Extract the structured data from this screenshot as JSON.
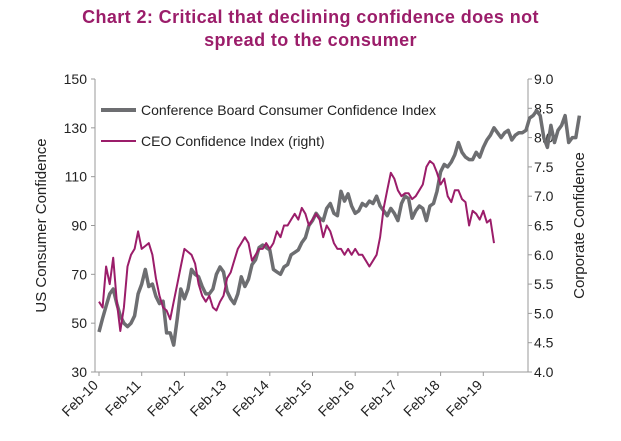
{
  "chart_data": {
    "type": "line",
    "title_lines": [
      "Chart 2: Critical that declining confidence does not",
      "spread to the consumer"
    ],
    "ylabel_left": "US Consumer Confidence",
    "ylabel_right": "Corporate Confidence",
    "ylim_left": [
      30,
      150
    ],
    "yticks_left": [
      "30",
      "50",
      "70",
      "90",
      "110",
      "130",
      "150"
    ],
    "ylim_right": [
      4.0,
      9.0
    ],
    "yticks_right": [
      "4.0",
      "4.5",
      "5.0",
      "5.5",
      "6.0",
      "6.5",
      "7.0",
      "7.5",
      "8.0",
      "8.5",
      "9.0"
    ],
    "x_ticks": [
      "Feb-10",
      "Feb-11",
      "Feb-12",
      "Feb-13",
      "Feb-14",
      "Feb-15",
      "Feb-16",
      "Feb-17",
      "Feb-18",
      "Feb-19"
    ],
    "grid": false,
    "legend_position": "top-left",
    "series": [
      {
        "name": "Conference Board Consumer Confidence Index",
        "axis": "left",
        "color": "#6d6e71",
        "x_start": "2010-02",
        "frequency": "monthly",
        "values": [
          46.4,
          52,
          57,
          62,
          64,
          58,
          53,
          50,
          48.6,
          50,
          53,
          62,
          66,
          72.0,
          65,
          66,
          61,
          58,
          59,
          46,
          46,
          41,
          52,
          64,
          60,
          64,
          72,
          70,
          69,
          65,
          62,
          62,
          64,
          70,
          73,
          71,
          63,
          60,
          58,
          62,
          69,
          65,
          68,
          74,
          76,
          81,
          82,
          81,
          80,
          72,
          71,
          70,
          73,
          74,
          78,
          79,
          80,
          83,
          85,
          90,
          92,
          95,
          93,
          92,
          97,
          99,
          95,
          94,
          104,
          100,
          103,
          98,
          95,
          96,
          99,
          98,
          100,
          99,
          102,
          98,
          96,
          94,
          97,
          95,
          92,
          99,
          102,
          101,
          93,
          96,
          98,
          97,
          92,
          98,
          99,
          104,
          112,
          115,
          114,
          116,
          119,
          124,
          120,
          118,
          117,
          117,
          120,
          118,
          122,
          125,
          127,
          130,
          128,
          126,
          128,
          129,
          125,
          127,
          128,
          128,
          129,
          134,
          135,
          137,
          135,
          126,
          122,
          131,
          124,
          129,
          131,
          135,
          124,
          126,
          126,
          135
        ]
      },
      {
        "name": "CEO Confidence Index (right)",
        "axis": "right",
        "color": "#9b1d6a",
        "x_start": "2010-02",
        "frequency": "monthly",
        "values": [
          5.2,
          5.1,
          5.8,
          5.5,
          5.95,
          5.2,
          4.7,
          5.1,
          5.8,
          6.0,
          6.1,
          6.4,
          6.1,
          6.15,
          6.2,
          6.0,
          5.6,
          5.3,
          5.1,
          5.05,
          4.9,
          5.2,
          5.5,
          5.8,
          6.1,
          6.05,
          6.0,
          5.85,
          5.5,
          5.3,
          5.2,
          5.3,
          5.1,
          5.05,
          5.2,
          5.3,
          5.6,
          5.7,
          5.9,
          6.1,
          6.2,
          6.3,
          6.2,
          5.9,
          6.0,
          6.1,
          6.1,
          6.2,
          6.1,
          6.2,
          6.4,
          6.3,
          6.5,
          6.5,
          6.6,
          6.7,
          6.6,
          6.8,
          6.7,
          6.5,
          6.6,
          6.7,
          6.6,
          6.3,
          6.5,
          6.4,
          6.2,
          6.1,
          6.1,
          6.0,
          6.1,
          6.0,
          6.1,
          6.0,
          6.0,
          5.9,
          5.8,
          5.9,
          6.0,
          6.3,
          6.8,
          7.1,
          7.4,
          7.3,
          7.1,
          7.0,
          7.05,
          7.05,
          6.95,
          7.0,
          7.1,
          7.2,
          7.5,
          7.6,
          7.55,
          7.4,
          7.2,
          7.3,
          7.0,
          6.9,
          7.1,
          7.1,
          6.95,
          6.9,
          6.5,
          6.75,
          6.7,
          6.6,
          6.75,
          6.55,
          6.6,
          6.2
        ]
      }
    ]
  }
}
